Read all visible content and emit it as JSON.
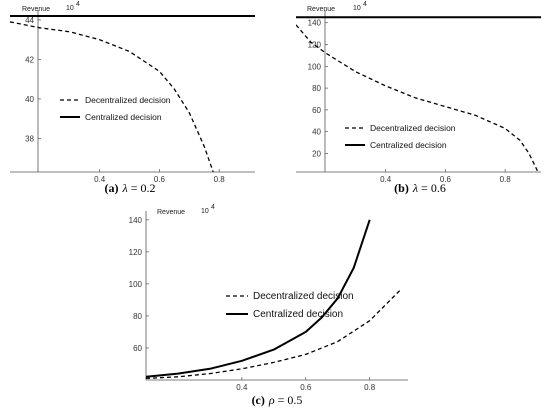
{
  "chart_data": [
    {
      "type": "line",
      "id": "a",
      "caption_tag": "(a)",
      "caption_var": "λ",
      "caption_rest": " = 0.2",
      "ylabel": "Revenue",
      "yunit": "10",
      "yexp": "4",
      "xticks": [
        0.4,
        0.6,
        0.8
      ],
      "yticks": [
        38,
        40,
        42,
        44
      ],
      "ytick_labels": [
        "38",
        "40",
        "42",
        "44"
      ],
      "xlim": [
        0.1,
        0.92
      ],
      "ylim": [
        36.3,
        44.3
      ],
      "series": [
        {
          "name": "Decentralized decision",
          "style": "dashed",
          "x": [
            0.1,
            0.2,
            0.3,
            0.4,
            0.5,
            0.6,
            0.65,
            0.7,
            0.75,
            0.78
          ],
          "y": [
            43.9,
            43.6,
            43.4,
            43.0,
            42.4,
            41.4,
            40.5,
            39.3,
            37.6,
            36.3
          ]
        },
        {
          "name": "Centralized decision",
          "style": "solid",
          "x": [
            0.1,
            0.92
          ],
          "y": [
            44.2,
            44.2
          ]
        }
      ]
    },
    {
      "type": "line",
      "id": "b",
      "caption_tag": "(b)",
      "caption_var": "λ",
      "caption_rest": " = 0.6",
      "ylabel": "Revenue",
      "yunit": "10",
      "yexp": "4",
      "xticks": [
        0.4,
        0.6,
        0.8
      ],
      "yticks": [
        20,
        40,
        60,
        80,
        100,
        120,
        140
      ],
      "ytick_labels": [
        "20",
        "40",
        "60",
        "80",
        "100",
        "120",
        "140"
      ],
      "xlim": [
        0.1,
        0.92
      ],
      "ylim": [
        3,
        148
      ],
      "series": [
        {
          "name": "Decentralized decision",
          "style": "dashed",
          "x": [
            0.1,
            0.15,
            0.2,
            0.3,
            0.4,
            0.5,
            0.6,
            0.7,
            0.8,
            0.85,
            0.88,
            0.91
          ],
          "y": [
            138,
            122,
            112,
            95,
            82,
            71,
            63,
            55,
            43,
            32,
            20,
            3
          ]
        },
        {
          "name": "Centralized decision",
          "style": "solid",
          "x": [
            0.1,
            0.92
          ],
          "y": [
            145,
            145
          ]
        }
      ]
    },
    {
      "type": "line",
      "id": "c",
      "caption_tag": "(c)",
      "caption_var": "ρ",
      "caption_rest": " = 0.5",
      "ylabel": "Revenue",
      "yunit": "10",
      "yexp": "4",
      "xticks": [
        0.4,
        0.6,
        0.8
      ],
      "yticks": [
        60,
        80,
        100,
        120,
        140
      ],
      "ytick_labels": [
        "60",
        "80",
        "100",
        "120",
        "140"
      ],
      "xlim": [
        0.1,
        0.92
      ],
      "ylim": [
        40,
        143
      ],
      "series": [
        {
          "name": "Decentralized decision",
          "style": "dashed",
          "x": [
            0.1,
            0.2,
            0.3,
            0.4,
            0.5,
            0.6,
            0.7,
            0.8,
            0.9
          ],
          "y": [
            41,
            42,
            44,
            47,
            51,
            56,
            64,
            77,
            97
          ]
        },
        {
          "name": "Centralized decision",
          "style": "solid",
          "x": [
            0.1,
            0.2,
            0.3,
            0.4,
            0.5,
            0.6,
            0.65,
            0.7,
            0.75,
            0.8
          ],
          "y": [
            42,
            44,
            47,
            52,
            59,
            70,
            79,
            91,
            110,
            140
          ]
        }
      ]
    }
  ]
}
